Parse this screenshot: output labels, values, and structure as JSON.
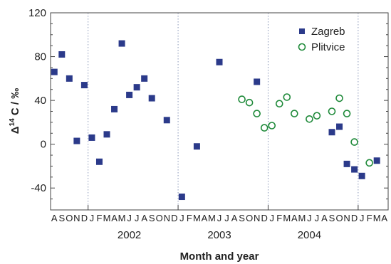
{
  "chart_data": {
    "type": "scatter",
    "title": "",
    "xlabel": "Month and year",
    "ylabel": "Δ¹⁴C / ‰",
    "ylabel_parts": {
      "delta": "Δ",
      "sup": "14",
      "rest": " C / ‰"
    },
    "ylim": [
      -60,
      120
    ],
    "yticks": [
      "-40",
      "0",
      "40",
      "80",
      "120"
    ],
    "ytick_values": [
      -40,
      0,
      40,
      80,
      120
    ],
    "x_range": [
      "2001-08",
      "2005-04"
    ],
    "month_labels": "ASONDJFMAMJJASONDJFMAMJJASONDJFMAMJJASONDJFMA",
    "year_labels": [
      {
        "text": "2002",
        "month": "2002-06"
      },
      {
        "text": "2003",
        "month": "2003-06"
      },
      {
        "text": "2004",
        "month": "2004-06"
      }
    ],
    "grid": "dotted vertical lines at each January",
    "legend_position": "top-right",
    "series": [
      {
        "name": "Zagreb",
        "marker": "filled-square",
        "color": "#2b3a8a",
        "points": [
          {
            "x": "2001-08",
            "y": 66
          },
          {
            "x": "2001-09",
            "y": 82
          },
          {
            "x": "2001-10",
            "y": 60
          },
          {
            "x": "2001-11",
            "y": 3
          },
          {
            "x": "2001-12",
            "y": 54
          },
          {
            "x": "2002-01",
            "y": 6
          },
          {
            "x": "2002-02",
            "y": -16
          },
          {
            "x": "2002-03",
            "y": 9
          },
          {
            "x": "2002-04",
            "y": 32
          },
          {
            "x": "2002-05",
            "y": 92
          },
          {
            "x": "2002-06",
            "y": 45
          },
          {
            "x": "2002-07",
            "y": 52
          },
          {
            "x": "2002-08",
            "y": 60
          },
          {
            "x": "2002-09",
            "y": 42
          },
          {
            "x": "2002-11",
            "y": 22
          },
          {
            "x": "2003-01",
            "y": -48
          },
          {
            "x": "2003-03",
            "y": -2
          },
          {
            "x": "2003-06",
            "y": 75
          },
          {
            "x": "2003-11",
            "y": 57
          },
          {
            "x": "2004-09",
            "y": 11
          },
          {
            "x": "2004-10",
            "y": 16
          },
          {
            "x": "2004-11",
            "y": -18
          },
          {
            "x": "2004-12",
            "y": -23
          },
          {
            "x": "2005-01",
            "y": -29
          },
          {
            "x": "2005-03",
            "y": -15
          }
        ]
      },
      {
        "name": "Plitvice",
        "marker": "open-circle",
        "color": "#1f8a3a",
        "points": [
          {
            "x": "2003-09",
            "y": 41
          },
          {
            "x": "2003-10",
            "y": 38
          },
          {
            "x": "2003-11",
            "y": 28
          },
          {
            "x": "2003-12",
            "y": 15
          },
          {
            "x": "2004-01",
            "y": 17
          },
          {
            "x": "2004-02",
            "y": 37
          },
          {
            "x": "2004-03",
            "y": 43
          },
          {
            "x": "2004-04",
            "y": 28
          },
          {
            "x": "2004-06",
            "y": 23
          },
          {
            "x": "2004-07",
            "y": 26
          },
          {
            "x": "2004-09",
            "y": 30
          },
          {
            "x": "2004-10",
            "y": 42
          },
          {
            "x": "2004-11",
            "y": 28
          },
          {
            "x": "2004-12",
            "y": 2
          },
          {
            "x": "2005-02",
            "y": -17
          }
        ]
      }
    ]
  }
}
